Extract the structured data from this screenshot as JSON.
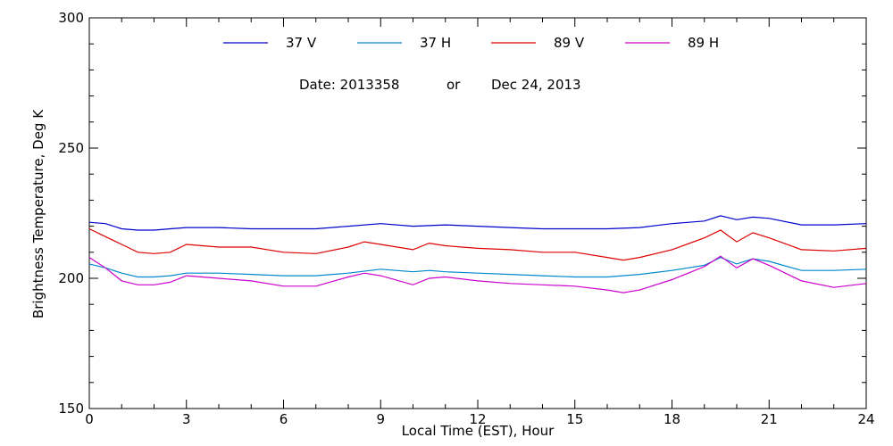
{
  "chart_data": {
    "type": "line",
    "xlabel": "Local Time (EST), Hour",
    "ylabel": "Brightness Temperature, Deg K",
    "xlim": [
      0,
      24
    ],
    "ylim": [
      150,
      300
    ],
    "x_ticks": [
      0,
      3,
      6,
      9,
      12,
      15,
      18,
      21,
      24
    ],
    "y_ticks": [
      150,
      200,
      250,
      300
    ],
    "grid": false,
    "legend_position": "top-center",
    "annotation": {
      "date_label": "Date: 2013358",
      "or_label": "or",
      "date_text": "Dec 24, 2013"
    },
    "series": [
      {
        "name": "37 V",
        "color": "#0000cc",
        "x": [
          0,
          0.5,
          1,
          1.5,
          2,
          2.5,
          3,
          4,
          5,
          6,
          7,
          8,
          9,
          10,
          11,
          12,
          13,
          14,
          15,
          16,
          17,
          18,
          19,
          19.5,
          20,
          20.5,
          21,
          22,
          23,
          24
        ],
        "y": [
          221.5,
          221,
          219,
          218.5,
          218.5,
          219,
          219.5,
          219.5,
          219,
          219,
          219,
          220,
          221,
          220,
          220.5,
          220,
          219.5,
          219,
          219,
          219,
          219.5,
          221,
          222,
          224,
          222.5,
          223.5,
          223,
          220.5,
          220.5,
          221
        ]
      },
      {
        "name": "37 H",
        "color": "#0088cc",
        "x": [
          0,
          0.5,
          1,
          1.5,
          2,
          2.5,
          3,
          4,
          5,
          6,
          7,
          8,
          9,
          10,
          10.5,
          11,
          12,
          13,
          14,
          15,
          16,
          17,
          18,
          19,
          19.5,
          20,
          20.5,
          21,
          22,
          23,
          24
        ],
        "y": [
          205.5,
          204,
          202,
          200.5,
          200.5,
          201,
          202,
          202,
          201.5,
          201,
          201,
          202,
          203.5,
          202.5,
          203,
          202.5,
          202,
          201.5,
          201,
          200.5,
          200.5,
          201.5,
          203,
          205,
          208,
          205.5,
          207.5,
          206.5,
          203,
          203,
          203.5
        ]
      },
      {
        "name": "89 V",
        "color": "#dd0000",
        "x": [
          0,
          0.5,
          1,
          1.5,
          2,
          2.5,
          3,
          4,
          5,
          6,
          7,
          8,
          8.5,
          9,
          10,
          10.5,
          11,
          12,
          13,
          14,
          15,
          16,
          16.5,
          17,
          18,
          19,
          19.5,
          20,
          20.5,
          21,
          22,
          23,
          24
        ],
        "y": [
          219,
          216,
          213,
          210,
          209.5,
          210,
          213,
          212,
          212,
          210,
          209.5,
          212,
          214,
          213,
          211,
          213.5,
          212.5,
          211.5,
          211,
          210,
          210,
          208,
          207,
          208,
          211,
          215.5,
          218.5,
          214,
          217.5,
          215.5,
          211,
          210.5,
          211.5
        ]
      },
      {
        "name": "89 H",
        "color": "#cc00cc",
        "x": [
          0,
          0.5,
          1,
          1.5,
          2,
          2.5,
          3,
          4,
          5,
          6,
          7,
          8,
          8.5,
          9,
          10,
          10.5,
          11,
          12,
          13,
          14,
          15,
          16,
          16.5,
          17,
          18,
          19,
          19.5,
          20,
          20.5,
          21,
          22,
          23,
          24
        ],
        "y": [
          208,
          204,
          199,
          197.5,
          197.5,
          198.5,
          201,
          200,
          199,
          197,
          197,
          200.5,
          202,
          201,
          197.5,
          200,
          200.5,
          199,
          198,
          197.5,
          197,
          195.5,
          194.5,
          195.5,
          199.5,
          204.5,
          208.5,
          204,
          207.5,
          205,
          199,
          196.5,
          198
        ]
      }
    ]
  }
}
